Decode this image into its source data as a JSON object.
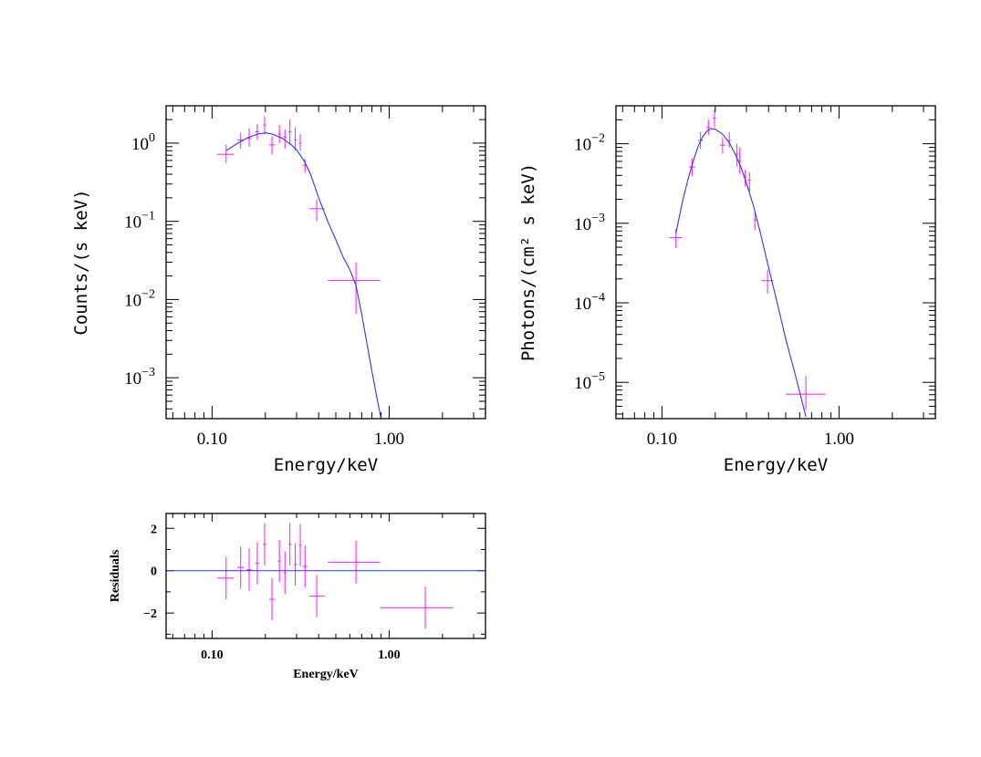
{
  "chart_data": [
    {
      "type": "scatter",
      "panel": "counts",
      "xlabel": "Energy/keV",
      "ylabel": "Counts/(s keV)",
      "xscale": "log",
      "yscale": "log",
      "xlim": [
        0.055,
        3.5
      ],
      "ylim": [
        0.0003,
        3.0
      ],
      "xticks": [
        {
          "value": 0.1,
          "label": "0.10"
        },
        {
          "value": 1.0,
          "label": "1.00"
        }
      ],
      "yticks": [
        {
          "value": 1.0,
          "mant": "10",
          "exp": "0"
        },
        {
          "value": 0.1,
          "mant": "10",
          "exp": "−1"
        },
        {
          "value": 0.01,
          "mant": "10",
          "exp": "−2"
        },
        {
          "value": 0.001,
          "mant": "10",
          "exp": "−3"
        }
      ],
      "series": [
        {
          "kind": "data",
          "color": "#ff2bff",
          "points": [
            {
              "x": 0.12,
              "xlo": 0.107,
              "xhi": 0.133,
              "y": 0.72,
              "ylo": 0.55,
              "yhi": 0.95
            },
            {
              "x": 0.145,
              "xlo": 0.139,
              "xhi": 0.151,
              "y": 1.1,
              "ylo": 0.85,
              "yhi": 1.35
            },
            {
              "x": 0.162,
              "xlo": 0.157,
              "xhi": 0.167,
              "y": 1.15,
              "ylo": 0.9,
              "yhi": 1.55
            },
            {
              "x": 0.18,
              "xlo": 0.175,
              "xhi": 0.185,
              "y": 1.4,
              "ylo": 1.1,
              "yhi": 1.75
            },
            {
              "x": 0.198,
              "xlo": 0.194,
              "xhi": 0.202,
              "y": 1.7,
              "ylo": 1.3,
              "yhi": 2.2
            },
            {
              "x": 0.218,
              "xlo": 0.21,
              "xhi": 0.226,
              "y": 0.95,
              "ylo": 0.72,
              "yhi": 1.2
            },
            {
              "x": 0.24,
              "xlo": 0.235,
              "xhi": 0.245,
              "y": 1.3,
              "ylo": 1.0,
              "yhi": 1.7
            },
            {
              "x": 0.258,
              "xlo": 0.253,
              "xhi": 0.263,
              "y": 1.2,
              "ylo": 0.85,
              "yhi": 1.5
            },
            {
              "x": 0.275,
              "xlo": 0.27,
              "xhi": 0.28,
              "y": 1.4,
              "ylo": 0.95,
              "yhi": 2.0
            },
            {
              "x": 0.295,
              "xlo": 0.29,
              "xhi": 0.3,
              "y": 1.1,
              "ylo": 0.8,
              "yhi": 1.6
            },
            {
              "x": 0.315,
              "xlo": 0.31,
              "xhi": 0.32,
              "y": 1.0,
              "ylo": 0.8,
              "yhi": 1.3
            },
            {
              "x": 0.335,
              "xlo": 0.325,
              "xhi": 0.345,
              "y": 0.52,
              "ylo": 0.42,
              "yhi": 0.62
            },
            {
              "x": 0.39,
              "xlo": 0.355,
              "xhi": 0.43,
              "y": 0.145,
              "ylo": 0.1,
              "yhi": 0.19
            },
            {
              "x": 0.65,
              "xlo": 0.45,
              "xhi": 0.89,
              "y": 0.0175,
              "ylo": 0.0065,
              "yhi": 0.03
            }
          ]
        },
        {
          "kind": "model",
          "color": "#3030ff",
          "points": [
            [
              0.12,
              0.8
            ],
            [
              0.14,
              1.0
            ],
            [
              0.16,
              1.18
            ],
            [
              0.18,
              1.3
            ],
            [
              0.2,
              1.35
            ],
            [
              0.22,
              1.3
            ],
            [
              0.25,
              1.15
            ],
            [
              0.28,
              0.95
            ],
            [
              0.3,
              0.82
            ],
            [
              0.33,
              0.6
            ],
            [
              0.36,
              0.4
            ],
            [
              0.4,
              0.2
            ],
            [
              0.45,
              0.1
            ],
            [
              0.5,
              0.058
            ],
            [
              0.55,
              0.035
            ],
            [
              0.6,
              0.024
            ],
            [
              0.65,
              0.0152
            ],
            [
              0.7,
              0.0065
            ],
            [
              0.75,
              0.0027
            ],
            [
              0.8,
              0.0012
            ],
            [
              0.85,
              0.00058
            ],
            [
              0.9,
              0.0003
            ]
          ]
        }
      ]
    },
    {
      "type": "scatter",
      "panel": "photons",
      "xlabel": "Energy/keV",
      "ylabel": "Photons/(cm² s keV)",
      "xscale": "log",
      "yscale": "log",
      "xlim": [
        0.055,
        3.5
      ],
      "ylim": [
        3.5e-06,
        0.03
      ],
      "xticks": [
        {
          "value": 0.1,
          "label": "0.10"
        },
        {
          "value": 1.0,
          "label": "1.00"
        }
      ],
      "yticks": [
        {
          "value": 0.01,
          "mant": "10",
          "exp": "−2"
        },
        {
          "value": 0.001,
          "mant": "10",
          "exp": "−3"
        },
        {
          "value": 0.0001,
          "mant": "10",
          "exp": "−4"
        },
        {
          "value": 1e-05,
          "mant": "10",
          "exp": "−5"
        }
      ],
      "series": [
        {
          "kind": "data",
          "color": "#ff2bff",
          "points": [
            {
              "x": 0.12,
              "xlo": 0.11,
              "xhi": 0.13,
              "y": 0.00066,
              "ylo": 0.00049,
              "yhi": 0.00085
            },
            {
              "x": 0.148,
              "xlo": 0.142,
              "xhi": 0.154,
              "y": 0.0051,
              "ylo": 0.0039,
              "yhi": 0.0066
            },
            {
              "x": 0.165,
              "xlo": 0.16,
              "xhi": 0.17,
              "y": 0.011,
              "ylo": 0.0087,
              "yhi": 0.014
            },
            {
              "x": 0.183,
              "xlo": 0.178,
              "xhi": 0.188,
              "y": 0.016,
              "ylo": 0.013,
              "yhi": 0.02
            },
            {
              "x": 0.198,
              "xlo": 0.194,
              "xhi": 0.202,
              "y": 0.021,
              "ylo": 0.016,
              "yhi": 0.027
            },
            {
              "x": 0.22,
              "xlo": 0.212,
              "xhi": 0.228,
              "y": 0.0096,
              "ylo": 0.0075,
              "yhi": 0.012
            },
            {
              "x": 0.24,
              "xlo": 0.235,
              "xhi": 0.245,
              "y": 0.011,
              "ylo": 0.0089,
              "yhi": 0.014
            },
            {
              "x": 0.265,
              "xlo": 0.26,
              "xhi": 0.27,
              "y": 0.0074,
              "ylo": 0.0052,
              "yhi": 0.01
            },
            {
              "x": 0.275,
              "xlo": 0.27,
              "xhi": 0.28,
              "y": 0.0061,
              "ylo": 0.0042,
              "yhi": 0.0089
            },
            {
              "x": 0.295,
              "xlo": 0.29,
              "xhi": 0.3,
              "y": 0.0038,
              "ylo": 0.0029,
              "yhi": 0.0047
            },
            {
              "x": 0.312,
              "xlo": 0.306,
              "xhi": 0.318,
              "y": 0.0035,
              "ylo": 0.0025,
              "yhi": 0.0044
            },
            {
              "x": 0.335,
              "xlo": 0.328,
              "xhi": 0.342,
              "y": 0.0011,
              "ylo": 0.00082,
              "yhi": 0.0014
            },
            {
              "x": 0.395,
              "xlo": 0.365,
              "xhi": 0.425,
              "y": 0.00019,
              "ylo": 0.00013,
              "yhi": 0.00026
            },
            {
              "x": 0.65,
              "xlo": 0.5,
              "xhi": 0.84,
              "y": 7.1e-06,
              "ylo": 4.5e-06,
              "yhi": 1.2e-05
            }
          ]
        },
        {
          "kind": "model",
          "color": "#3030ff",
          "points": [
            [
              0.12,
              0.00075
            ],
            [
              0.13,
              0.0018
            ],
            [
              0.14,
              0.0035
            ],
            [
              0.15,
              0.006
            ],
            [
              0.16,
              0.0093
            ],
            [
              0.17,
              0.0123
            ],
            [
              0.18,
              0.0145
            ],
            [
              0.19,
              0.0155
            ],
            [
              0.2,
              0.0152
            ],
            [
              0.22,
              0.0132
            ],
            [
              0.24,
              0.0103
            ],
            [
              0.26,
              0.0073
            ],
            [
              0.28,
              0.005
            ],
            [
              0.3,
              0.0032
            ],
            [
              0.33,
              0.0016
            ],
            [
              0.36,
              0.00075
            ],
            [
              0.4,
              0.00028
            ],
            [
              0.45,
              9.5e-05
            ],
            [
              0.5,
              3.5e-05
            ],
            [
              0.55,
              1.6e-05
            ],
            [
              0.6,
              7.5e-06
            ],
            [
              0.65,
              3.7e-06
            ]
          ]
        }
      ]
    },
    {
      "type": "scatter",
      "panel": "residuals",
      "xlabel": "Energy/keV",
      "ylabel": "Residuals",
      "xscale": "log",
      "yscale": "linear",
      "xlim": [
        0.055,
        3.5
      ],
      "ylim": [
        -3.2,
        2.7
      ],
      "xticks": [
        {
          "value": 0.1,
          "label": "0.10"
        },
        {
          "value": 1.0,
          "label": "1.00"
        }
      ],
      "yticks": [
        {
          "value": 2,
          "label": "2"
        },
        {
          "value": 0,
          "label": "0"
        },
        {
          "value": -2,
          "label": "−2"
        }
      ],
      "series": [
        {
          "kind": "data",
          "color": "#ff2bff",
          "points": [
            {
              "x": 0.12,
              "xlo": 0.107,
              "xhi": 0.133,
              "y": -0.35,
              "ylo": -1.35,
              "yhi": 0.65
            },
            {
              "x": 0.145,
              "xlo": 0.139,
              "xhi": 0.151,
              "y": 0.15,
              "ylo": -0.85,
              "yhi": 1.15
            },
            {
              "x": 0.162,
              "xlo": 0.157,
              "xhi": 0.167,
              "y": 0.05,
              "ylo": -0.95,
              "yhi": 1.05
            },
            {
              "x": 0.18,
              "xlo": 0.175,
              "xhi": 0.185,
              "y": 0.35,
              "ylo": -0.65,
              "yhi": 1.35
            },
            {
              "x": 0.198,
              "xlo": 0.194,
              "xhi": 0.202,
              "y": 1.25,
              "ylo": 0.25,
              "yhi": 2.25
            },
            {
              "x": 0.218,
              "xlo": 0.21,
              "xhi": 0.226,
              "y": -1.35,
              "ylo": -2.35,
              "yhi": -0.35
            },
            {
              "x": 0.24,
              "xlo": 0.235,
              "xhi": 0.245,
              "y": 0.45,
              "ylo": -0.55,
              "yhi": 1.45
            },
            {
              "x": 0.258,
              "xlo": 0.253,
              "xhi": 0.263,
              "y": -0.1,
              "ylo": -1.1,
              "yhi": 0.9
            },
            {
              "x": 0.275,
              "xlo": 0.27,
              "xhi": 0.28,
              "y": 1.25,
              "ylo": 0.25,
              "yhi": 2.25
            },
            {
              "x": 0.295,
              "xlo": 0.29,
              "xhi": 0.3,
              "y": 0.3,
              "ylo": -0.7,
              "yhi": 1.3
            },
            {
              "x": 0.315,
              "xlo": 0.31,
              "xhi": 0.32,
              "y": 1.2,
              "ylo": 0.2,
              "yhi": 2.2
            },
            {
              "x": 0.335,
              "xlo": 0.325,
              "xhi": 0.345,
              "y": 0.2,
              "ylo": -0.8,
              "yhi": 1.2
            },
            {
              "x": 0.39,
              "xlo": 0.355,
              "xhi": 0.43,
              "y": -1.2,
              "ylo": -2.2,
              "yhi": -0.2
            },
            {
              "x": 0.65,
              "xlo": 0.45,
              "xhi": 0.89,
              "y": 0.4,
              "ylo": -0.6,
              "yhi": 1.4
            },
            {
              "x": 1.6,
              "xlo": 0.89,
              "xhi": 2.3,
              "y": -1.75,
              "ylo": -2.75,
              "yhi": -0.75
            }
          ]
        },
        {
          "kind": "model",
          "color": "#3030ff",
          "points": [
            [
              0.055,
              0
            ],
            [
              3.5,
              0
            ]
          ]
        }
      ]
    }
  ]
}
